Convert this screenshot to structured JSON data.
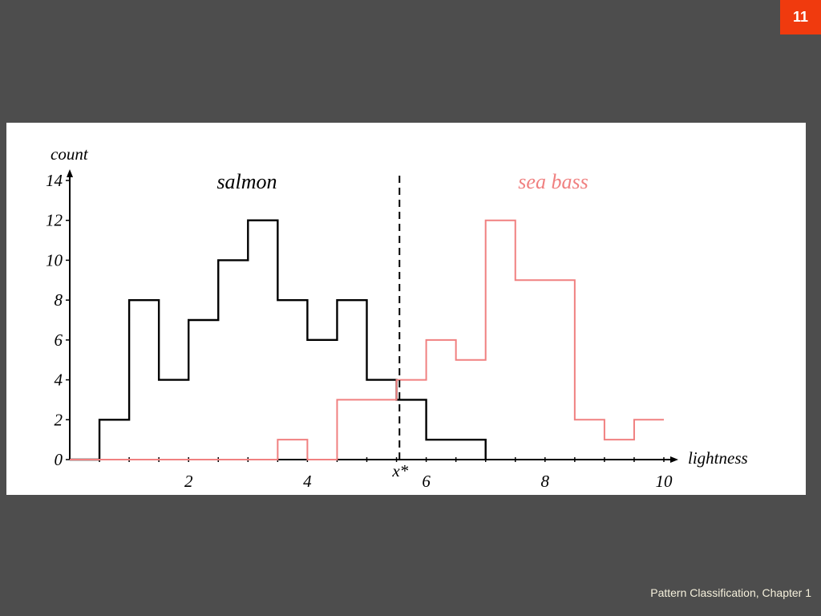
{
  "slide": {
    "number": "11",
    "footer": "Pattern Classification, Chapter 1"
  },
  "colors": {
    "background": "#4d4d4d",
    "badge": "#f03a0e",
    "salmon_series": "#000000",
    "sea_bass_series": "#f08080"
  },
  "chart_data": {
    "type": "histogram",
    "xlabel": "lightness",
    "ylabel": "count",
    "xlim": [
      0,
      10
    ],
    "ylim": [
      0,
      14
    ],
    "x_ticks": [
      2,
      4,
      6,
      8,
      10
    ],
    "y_ticks": [
      0,
      2,
      4,
      6,
      8,
      10,
      12,
      14
    ],
    "bin_edges": [
      0.5,
      1.0,
      1.5,
      2.0,
      2.5,
      3.0,
      3.5,
      4.0,
      4.5,
      5.0,
      5.5,
      6.0,
      6.5,
      7.0,
      7.5,
      8.0,
      8.5,
      9.0,
      9.5,
      10.0
    ],
    "series": [
      {
        "name": "salmon",
        "color": "#000000",
        "steps": [
          [
            0,
            0
          ],
          [
            0.5,
            2
          ],
          [
            1.0,
            8
          ],
          [
            1.5,
            4
          ],
          [
            2.0,
            7
          ],
          [
            2.5,
            10
          ],
          [
            3.0,
            12
          ],
          [
            3.5,
            8
          ],
          [
            4.0,
            6
          ],
          [
            4.5,
            8
          ],
          [
            5.0,
            4
          ],
          [
            5.5,
            3
          ],
          [
            6.0,
            1
          ],
          [
            7.0,
            0
          ]
        ]
      },
      {
        "name": "sea bass",
        "color": "#f08080",
        "steps": [
          [
            0,
            0
          ],
          [
            3.5,
            1
          ],
          [
            4.0,
            0
          ],
          [
            4.5,
            3
          ],
          [
            5.5,
            4
          ],
          [
            6.0,
            6
          ],
          [
            6.5,
            5
          ],
          [
            7.0,
            12
          ],
          [
            7.5,
            9
          ],
          [
            8.5,
            2
          ],
          [
            9.0,
            1
          ],
          [
            9.5,
            2
          ],
          [
            10.0,
            2
          ]
        ]
      }
    ],
    "threshold": {
      "label": "x*",
      "x": 5.55,
      "style": "dashed"
    },
    "grid": false,
    "legend": "inline labels above each distribution"
  }
}
